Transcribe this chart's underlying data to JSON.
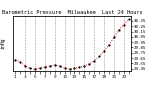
{
  "title": "Barometric Pressure  Milwaukee  Last 24 Hours",
  "background_color": "#ffffff",
  "plot_bg_color": "#ffffff",
  "grid_color": "#aaaaaa",
  "x_hours": [
    0,
    1,
    2,
    3,
    4,
    5,
    6,
    7,
    8,
    9,
    10,
    11,
    12,
    13,
    14,
    15,
    16,
    17,
    18,
    19,
    20,
    21,
    22,
    23
  ],
  "pressure": [
    29.62,
    29.57,
    29.5,
    29.46,
    29.44,
    29.46,
    29.48,
    29.5,
    29.52,
    29.5,
    29.46,
    29.44,
    29.46,
    29.48,
    29.5,
    29.54,
    29.6,
    29.68,
    29.78,
    29.9,
    30.04,
    30.18,
    30.28,
    30.38
  ],
  "x_ticks": [
    0,
    1,
    2,
    3,
    4,
    5,
    6,
    7,
    8,
    9,
    10,
    11,
    12,
    13,
    14,
    15,
    16,
    17,
    18,
    19,
    20,
    21,
    22,
    23
  ],
  "x_tick_labels": [
    "1",
    "",
    "3",
    "",
    "5",
    "",
    "7",
    "",
    "9",
    "",
    "11",
    "",
    "13",
    "",
    "15",
    "",
    "17",
    "",
    "19",
    "",
    "21",
    "",
    "23",
    ""
  ],
  "y_min": 29.4,
  "y_max": 30.45,
  "y_ticks": [
    29.45,
    29.55,
    29.65,
    29.75,
    29.85,
    29.95,
    30.05,
    30.15,
    30.25,
    30.35
  ],
  "y_tick_labels": [
    "29.45",
    "29.55",
    "29.65",
    "29.75",
    "29.85",
    "29.95",
    "30.05",
    "30.15",
    "30.25",
    "30.35"
  ],
  "dot_color": "#000000",
  "line_color": "#cc0000",
  "dot_size": 2.5,
  "line_width": 0.7,
  "grid_line_color": "#999999",
  "grid_x_ticks": [
    2,
    4,
    6,
    8,
    10,
    12,
    14,
    16,
    18,
    20,
    22
  ]
}
